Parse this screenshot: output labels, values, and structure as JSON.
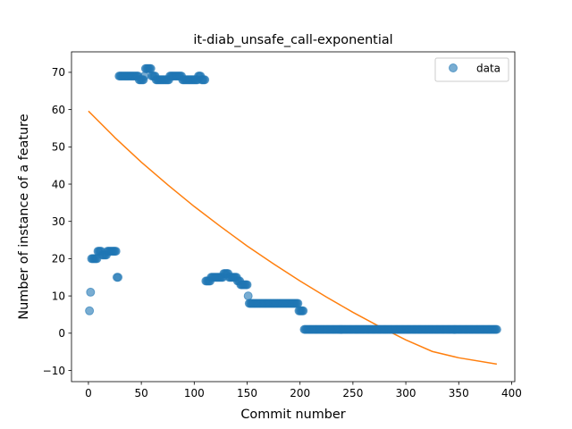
{
  "chart_data": {
    "type": "scatter",
    "title": "it-diab_unsafe_call-exponential",
    "xlabel": "Commit number",
    "ylabel": "Number of instance of a feature",
    "xlim": [
      -16,
      403
    ],
    "ylim": [
      -13,
      75.5
    ],
    "xticks": [
      0,
      50,
      100,
      150,
      200,
      250,
      300,
      350,
      400
    ],
    "yticks": [
      -10,
      0,
      10,
      20,
      30,
      40,
      50,
      60,
      70
    ],
    "legend": {
      "placement": "top-right",
      "entries": [
        "data"
      ]
    },
    "grid": false,
    "colors": {
      "data": "#1f77b4",
      "fit": "#ff7f0e"
    },
    "series": [
      {
        "name": "data",
        "kind": "scatter",
        "segments": [
          {
            "points": [
              [
                1,
                6
              ],
              [
                2,
                11
              ]
            ]
          },
          {
            "x_start": 3,
            "x_end": 8,
            "y": 20
          },
          {
            "x_start": 9,
            "x_end": 12,
            "y": 22
          },
          {
            "x_start": 13,
            "x_end": 17,
            "y": 21
          },
          {
            "x_start": 18,
            "x_end": 26,
            "y": 22
          },
          {
            "x_start": 27,
            "x_end": 28,
            "y": 15
          },
          {
            "x_start": 29,
            "x_end": 47,
            "y": 69
          },
          {
            "x_start": 48,
            "x_end": 52,
            "y": 68
          },
          {
            "x_start": 53,
            "x_end": 53,
            "y": 69
          },
          {
            "x_start": 54,
            "x_end": 59,
            "y": 71
          },
          {
            "x_start": 60,
            "x_end": 63,
            "y": 69
          },
          {
            "x_start": 64,
            "x_end": 76,
            "y": 68
          },
          {
            "x_start": 77,
            "x_end": 88,
            "y": 69
          },
          {
            "x_start": 89,
            "x_end": 103,
            "y": 68
          },
          {
            "x_start": 104,
            "x_end": 106,
            "y": 69
          },
          {
            "x_start": 107,
            "x_end": 110,
            "y": 68
          },
          {
            "x_start": 111,
            "x_end": 115,
            "y": 14
          },
          {
            "x_start": 116,
            "x_end": 127,
            "y": 15
          },
          {
            "x_start": 128,
            "x_end": 132,
            "y": 16
          },
          {
            "x_start": 133,
            "x_end": 140,
            "y": 15
          },
          {
            "x_start": 141,
            "x_end": 143,
            "y": 14
          },
          {
            "x_start": 144,
            "x_end": 150,
            "y": 13
          },
          {
            "x_start": 151,
            "x_end": 151,
            "y": 10
          },
          {
            "x_start": 152,
            "x_end": 198,
            "y": 8
          },
          {
            "x_start": 199,
            "x_end": 203,
            "y": 6
          },
          {
            "x_start": 204,
            "x_end": 386,
            "y": 1
          }
        ]
      },
      {
        "name": "",
        "kind": "line",
        "points": [
          [
            0,
            59.6
          ],
          [
            25,
            52.5
          ],
          [
            50,
            45.9
          ],
          [
            75,
            39.8
          ],
          [
            100,
            34.0
          ],
          [
            125,
            28.6
          ],
          [
            150,
            23.4
          ],
          [
            175,
            18.6
          ],
          [
            200,
            14.0
          ],
          [
            225,
            9.7
          ],
          [
            250,
            5.6
          ],
          [
            275,
            1.8
          ],
          [
            300,
            -1.8
          ],
          [
            325,
            -4.9
          ],
          [
            350,
            -6.6
          ],
          [
            386,
            -8.3
          ]
        ]
      }
    ]
  }
}
